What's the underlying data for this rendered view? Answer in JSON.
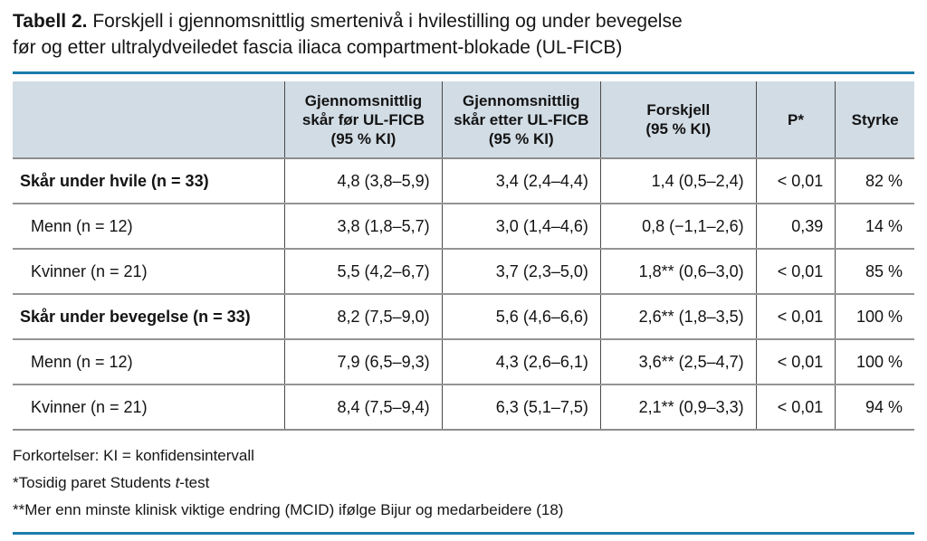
{
  "colors": {
    "accent_rule": "#1b7dab",
    "header_bg": "#d2dce5",
    "v_border": "#4a4a4a",
    "h_border": "#949494"
  },
  "title": {
    "prefix": "Tabell 2.",
    "line1_rest": " Forskjell i gjennomsnittlig smertenivå i hvilestilling og under bevegelse",
    "line2": "før og etter ultralydveiledet fascia iliaca compartment-blokade (UL-FICB)"
  },
  "table": {
    "header_lines": [
      [
        ""
      ],
      [
        "Gjennomsnittlig",
        "skår før UL-FICB",
        "(95 % KI)"
      ],
      [
        "Gjennomsnittlig",
        "skår etter UL-FICB",
        "(95 % KI)"
      ],
      [
        "Forskjell",
        "(95 % KI)"
      ],
      [
        "P*"
      ],
      [
        "Styrke"
      ]
    ],
    "rows": [
      {
        "label": "Skår under hvile (n = 33)",
        "bold": true,
        "values": [
          "4,8 (3,8–5,9)",
          "3,4 (2,4–4,4)",
          "1,4 (0,5–2,4)",
          "< 0,01",
          "82 %"
        ]
      },
      {
        "label": "Menn (n = 12)",
        "bold": false,
        "values": [
          "3,8 (1,8–5,7)",
          "3,0 (1,4–4,6)",
          "0,8 (−1,1–2,6)",
          "0,39",
          "14 %"
        ]
      },
      {
        "label": "Kvinner (n = 21)",
        "bold": false,
        "values": [
          "5,5 (4,2–6,7)",
          "3,7 (2,3–5,0)",
          "1,8** (0,6–3,0)",
          "< 0,01",
          "85 %"
        ]
      },
      {
        "label": "Skår under bevegelse (n = 33)",
        "bold": true,
        "values": [
          "8,2 (7,5–9,0)",
          "5,6 (4,6–6,6)",
          "2,6** (1,8–3,5)",
          "< 0,01",
          "100 %"
        ]
      },
      {
        "label": "Menn (n = 12)",
        "bold": false,
        "values": [
          "7,9 (6,5–9,3)",
          "4,3 (2,6–6,1)",
          "3,6** (2,5–4,7)",
          "< 0,01",
          "100 %"
        ]
      },
      {
        "label": "Kvinner (n = 21)",
        "bold": false,
        "values": [
          "8,4 (7,5–9,4)",
          "6,3 (5,1–7,5)",
          "2,1** (0,9–3,3)",
          "< 0,01",
          "94 %"
        ]
      }
    ]
  },
  "footnotes": {
    "line1": "Forkortelser: KI = konfidensintervall",
    "line2_parts": {
      "pre": "*Tosidig paret Students ",
      "italic": "t",
      "post": "-test"
    },
    "line3": "**Mer enn minste klinisk viktige endring (MCID) ifølge Bijur og medarbeidere (18)"
  }
}
